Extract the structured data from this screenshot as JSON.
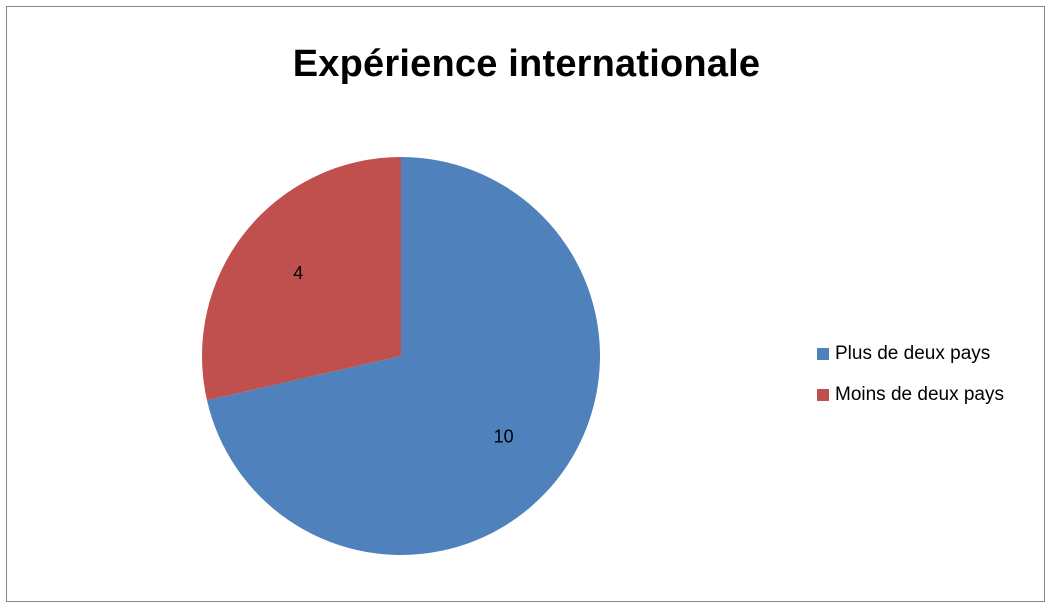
{
  "chart_data": {
    "type": "pie",
    "title": "Expérience internationale",
    "categories": [
      "Plus de deux pays",
      "Moins de deux pays"
    ],
    "values": [
      10,
      4
    ],
    "data_labels": [
      "10",
      "4"
    ],
    "colors": [
      "#4f81bd",
      "#c0504d"
    ],
    "legend_position": "right",
    "start_angle_deg": 0,
    "direction": "clockwise"
  }
}
